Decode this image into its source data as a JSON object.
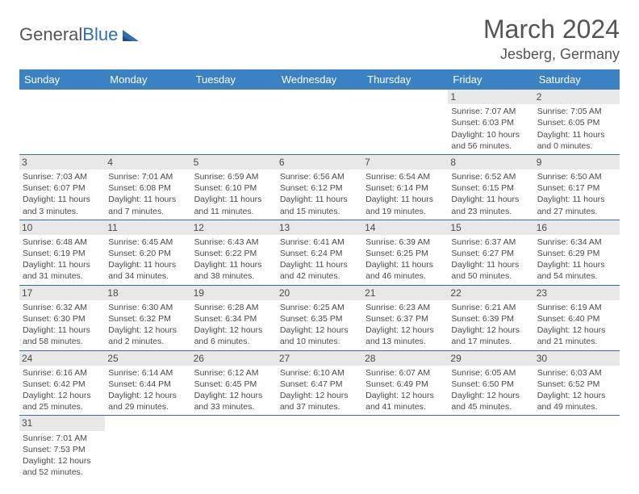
{
  "logo": {
    "text1": "General",
    "text2": "Blue"
  },
  "title": "March 2024",
  "location": "Jesberg, Germany",
  "colors": {
    "header_bg": "#3b82c4",
    "header_text": "#ffffff",
    "daynum_bg": "#e8e8e8",
    "border": "#2f6fb0",
    "body_text": "#4a4a4a",
    "title_text": "#555555",
    "logo_gray": "#555555",
    "logo_blue": "#2f6fb0"
  },
  "day_headers": [
    "Sunday",
    "Monday",
    "Tuesday",
    "Wednesday",
    "Thursday",
    "Friday",
    "Saturday"
  ],
  "weeks": [
    [
      null,
      null,
      null,
      null,
      null,
      {
        "n": "1",
        "sr": "Sunrise: 7:07 AM",
        "ss": "Sunset: 6:03 PM",
        "dl": "Daylight: 10 hours and 56 minutes."
      },
      {
        "n": "2",
        "sr": "Sunrise: 7:05 AM",
        "ss": "Sunset: 6:05 PM",
        "dl": "Daylight: 11 hours and 0 minutes."
      }
    ],
    [
      {
        "n": "3",
        "sr": "Sunrise: 7:03 AM",
        "ss": "Sunset: 6:07 PM",
        "dl": "Daylight: 11 hours and 3 minutes."
      },
      {
        "n": "4",
        "sr": "Sunrise: 7:01 AM",
        "ss": "Sunset: 6:08 PM",
        "dl": "Daylight: 11 hours and 7 minutes."
      },
      {
        "n": "5",
        "sr": "Sunrise: 6:59 AM",
        "ss": "Sunset: 6:10 PM",
        "dl": "Daylight: 11 hours and 11 minutes."
      },
      {
        "n": "6",
        "sr": "Sunrise: 6:56 AM",
        "ss": "Sunset: 6:12 PM",
        "dl": "Daylight: 11 hours and 15 minutes."
      },
      {
        "n": "7",
        "sr": "Sunrise: 6:54 AM",
        "ss": "Sunset: 6:14 PM",
        "dl": "Daylight: 11 hours and 19 minutes."
      },
      {
        "n": "8",
        "sr": "Sunrise: 6:52 AM",
        "ss": "Sunset: 6:15 PM",
        "dl": "Daylight: 11 hours and 23 minutes."
      },
      {
        "n": "9",
        "sr": "Sunrise: 6:50 AM",
        "ss": "Sunset: 6:17 PM",
        "dl": "Daylight: 11 hours and 27 minutes."
      }
    ],
    [
      {
        "n": "10",
        "sr": "Sunrise: 6:48 AM",
        "ss": "Sunset: 6:19 PM",
        "dl": "Daylight: 11 hours and 31 minutes."
      },
      {
        "n": "11",
        "sr": "Sunrise: 6:45 AM",
        "ss": "Sunset: 6:20 PM",
        "dl": "Daylight: 11 hours and 34 minutes."
      },
      {
        "n": "12",
        "sr": "Sunrise: 6:43 AM",
        "ss": "Sunset: 6:22 PM",
        "dl": "Daylight: 11 hours and 38 minutes."
      },
      {
        "n": "13",
        "sr": "Sunrise: 6:41 AM",
        "ss": "Sunset: 6:24 PM",
        "dl": "Daylight: 11 hours and 42 minutes."
      },
      {
        "n": "14",
        "sr": "Sunrise: 6:39 AM",
        "ss": "Sunset: 6:25 PM",
        "dl": "Daylight: 11 hours and 46 minutes."
      },
      {
        "n": "15",
        "sr": "Sunrise: 6:37 AM",
        "ss": "Sunset: 6:27 PM",
        "dl": "Daylight: 11 hours and 50 minutes."
      },
      {
        "n": "16",
        "sr": "Sunrise: 6:34 AM",
        "ss": "Sunset: 6:29 PM",
        "dl": "Daylight: 11 hours and 54 minutes."
      }
    ],
    [
      {
        "n": "17",
        "sr": "Sunrise: 6:32 AM",
        "ss": "Sunset: 6:30 PM",
        "dl": "Daylight: 11 hours and 58 minutes."
      },
      {
        "n": "18",
        "sr": "Sunrise: 6:30 AM",
        "ss": "Sunset: 6:32 PM",
        "dl": "Daylight: 12 hours and 2 minutes."
      },
      {
        "n": "19",
        "sr": "Sunrise: 6:28 AM",
        "ss": "Sunset: 6:34 PM",
        "dl": "Daylight: 12 hours and 6 minutes."
      },
      {
        "n": "20",
        "sr": "Sunrise: 6:25 AM",
        "ss": "Sunset: 6:35 PM",
        "dl": "Daylight: 12 hours and 10 minutes."
      },
      {
        "n": "21",
        "sr": "Sunrise: 6:23 AM",
        "ss": "Sunset: 6:37 PM",
        "dl": "Daylight: 12 hours and 13 minutes."
      },
      {
        "n": "22",
        "sr": "Sunrise: 6:21 AM",
        "ss": "Sunset: 6:39 PM",
        "dl": "Daylight: 12 hours and 17 minutes."
      },
      {
        "n": "23",
        "sr": "Sunrise: 6:19 AM",
        "ss": "Sunset: 6:40 PM",
        "dl": "Daylight: 12 hours and 21 minutes."
      }
    ],
    [
      {
        "n": "24",
        "sr": "Sunrise: 6:16 AM",
        "ss": "Sunset: 6:42 PM",
        "dl": "Daylight: 12 hours and 25 minutes."
      },
      {
        "n": "25",
        "sr": "Sunrise: 6:14 AM",
        "ss": "Sunset: 6:44 PM",
        "dl": "Daylight: 12 hours and 29 minutes."
      },
      {
        "n": "26",
        "sr": "Sunrise: 6:12 AM",
        "ss": "Sunset: 6:45 PM",
        "dl": "Daylight: 12 hours and 33 minutes."
      },
      {
        "n": "27",
        "sr": "Sunrise: 6:10 AM",
        "ss": "Sunset: 6:47 PM",
        "dl": "Daylight: 12 hours and 37 minutes."
      },
      {
        "n": "28",
        "sr": "Sunrise: 6:07 AM",
        "ss": "Sunset: 6:49 PM",
        "dl": "Daylight: 12 hours and 41 minutes."
      },
      {
        "n": "29",
        "sr": "Sunrise: 6:05 AM",
        "ss": "Sunset: 6:50 PM",
        "dl": "Daylight: 12 hours and 45 minutes."
      },
      {
        "n": "30",
        "sr": "Sunrise: 6:03 AM",
        "ss": "Sunset: 6:52 PM",
        "dl": "Daylight: 12 hours and 49 minutes."
      }
    ],
    [
      {
        "n": "31",
        "sr": "Sunrise: 7:01 AM",
        "ss": "Sunset: 7:53 PM",
        "dl": "Daylight: 12 hours and 52 minutes."
      },
      null,
      null,
      null,
      null,
      null,
      null
    ]
  ]
}
